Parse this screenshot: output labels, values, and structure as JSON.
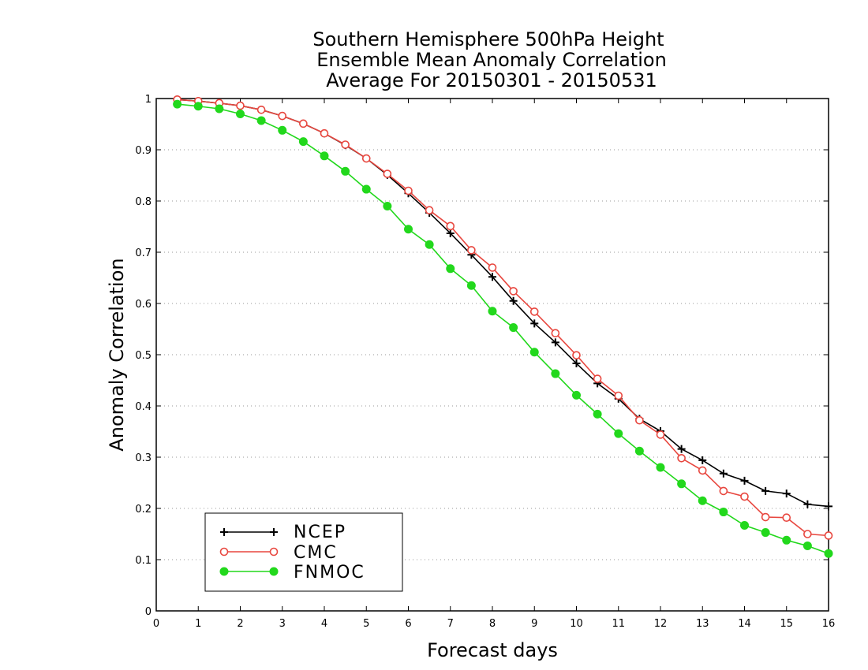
{
  "chart_data": {
    "type": "line",
    "title": [
      "Southern Hemisphere 500hPa Height",
      "Ensemble Mean Anomaly Correlation",
      "Average For 20150301 - 20150531"
    ],
    "xlabel": "Forecast days",
    "ylabel": "Anomaly Correlation",
    "xlim": [
      0,
      16
    ],
    "ylim": [
      0,
      1
    ],
    "x_ticks": [
      "0",
      "1",
      "2",
      "3",
      "4",
      "5",
      "6",
      "7",
      "8",
      "9",
      "10",
      "11",
      "12",
      "13",
      "14",
      "15",
      "16"
    ],
    "y_ticks": [
      "0",
      "0.1",
      "0.2",
      "0.3",
      "0.4",
      "0.5",
      "0.6",
      "0.7",
      "0.8",
      "0.9",
      "1"
    ],
    "grid": "horizontal dotted",
    "legend_position": "bottom-left",
    "x": [
      0.5,
      1.0,
      1.5,
      2.0,
      2.5,
      3.0,
      3.5,
      4.0,
      4.5,
      5.0,
      5.5,
      6.0,
      6.5,
      7.0,
      7.5,
      8.0,
      8.5,
      9.0,
      9.5,
      10.0,
      10.5,
      11.0,
      11.5,
      12.0,
      12.5,
      13.0,
      13.5,
      14.0,
      14.5,
      15.0,
      15.5,
      16.0
    ],
    "series": [
      {
        "name": "NCEP",
        "color": "#000000",
        "marker": "plus",
        "values": [
          0.998,
          0.995,
          0.991,
          0.986,
          0.978,
          0.966,
          0.951,
          0.932,
          0.909,
          0.883,
          0.851,
          0.815,
          0.777,
          0.737,
          0.695,
          0.652,
          0.605,
          0.561,
          0.524,
          0.483,
          0.444,
          0.414,
          0.375,
          0.351,
          0.316,
          0.294,
          0.268,
          0.254,
          0.234,
          0.229,
          0.208,
          0.204
        ]
      },
      {
        "name": "CMC",
        "color": "#e8473f",
        "marker": "open-circle",
        "values": [
          0.998,
          0.995,
          0.991,
          0.986,
          0.978,
          0.966,
          0.951,
          0.932,
          0.91,
          0.883,
          0.853,
          0.82,
          0.782,
          0.751,
          0.704,
          0.67,
          0.624,
          0.584,
          0.542,
          0.499,
          0.453,
          0.42,
          0.372,
          0.344,
          0.298,
          0.274,
          0.234,
          0.223,
          0.183,
          0.182,
          0.15,
          0.147
        ]
      },
      {
        "name": "FNMOC",
        "color": "#22d81c",
        "marker": "filled-circle",
        "values": [
          0.989,
          0.985,
          0.98,
          0.97,
          0.957,
          0.938,
          0.916,
          0.888,
          0.858,
          0.823,
          0.79,
          0.745,
          0.715,
          0.668,
          0.635,
          0.585,
          0.553,
          0.505,
          0.463,
          0.421,
          0.384,
          0.346,
          0.312,
          0.28,
          0.248,
          0.215,
          0.193,
          0.167,
          0.153,
          0.138,
          0.127,
          0.112
        ]
      }
    ]
  }
}
